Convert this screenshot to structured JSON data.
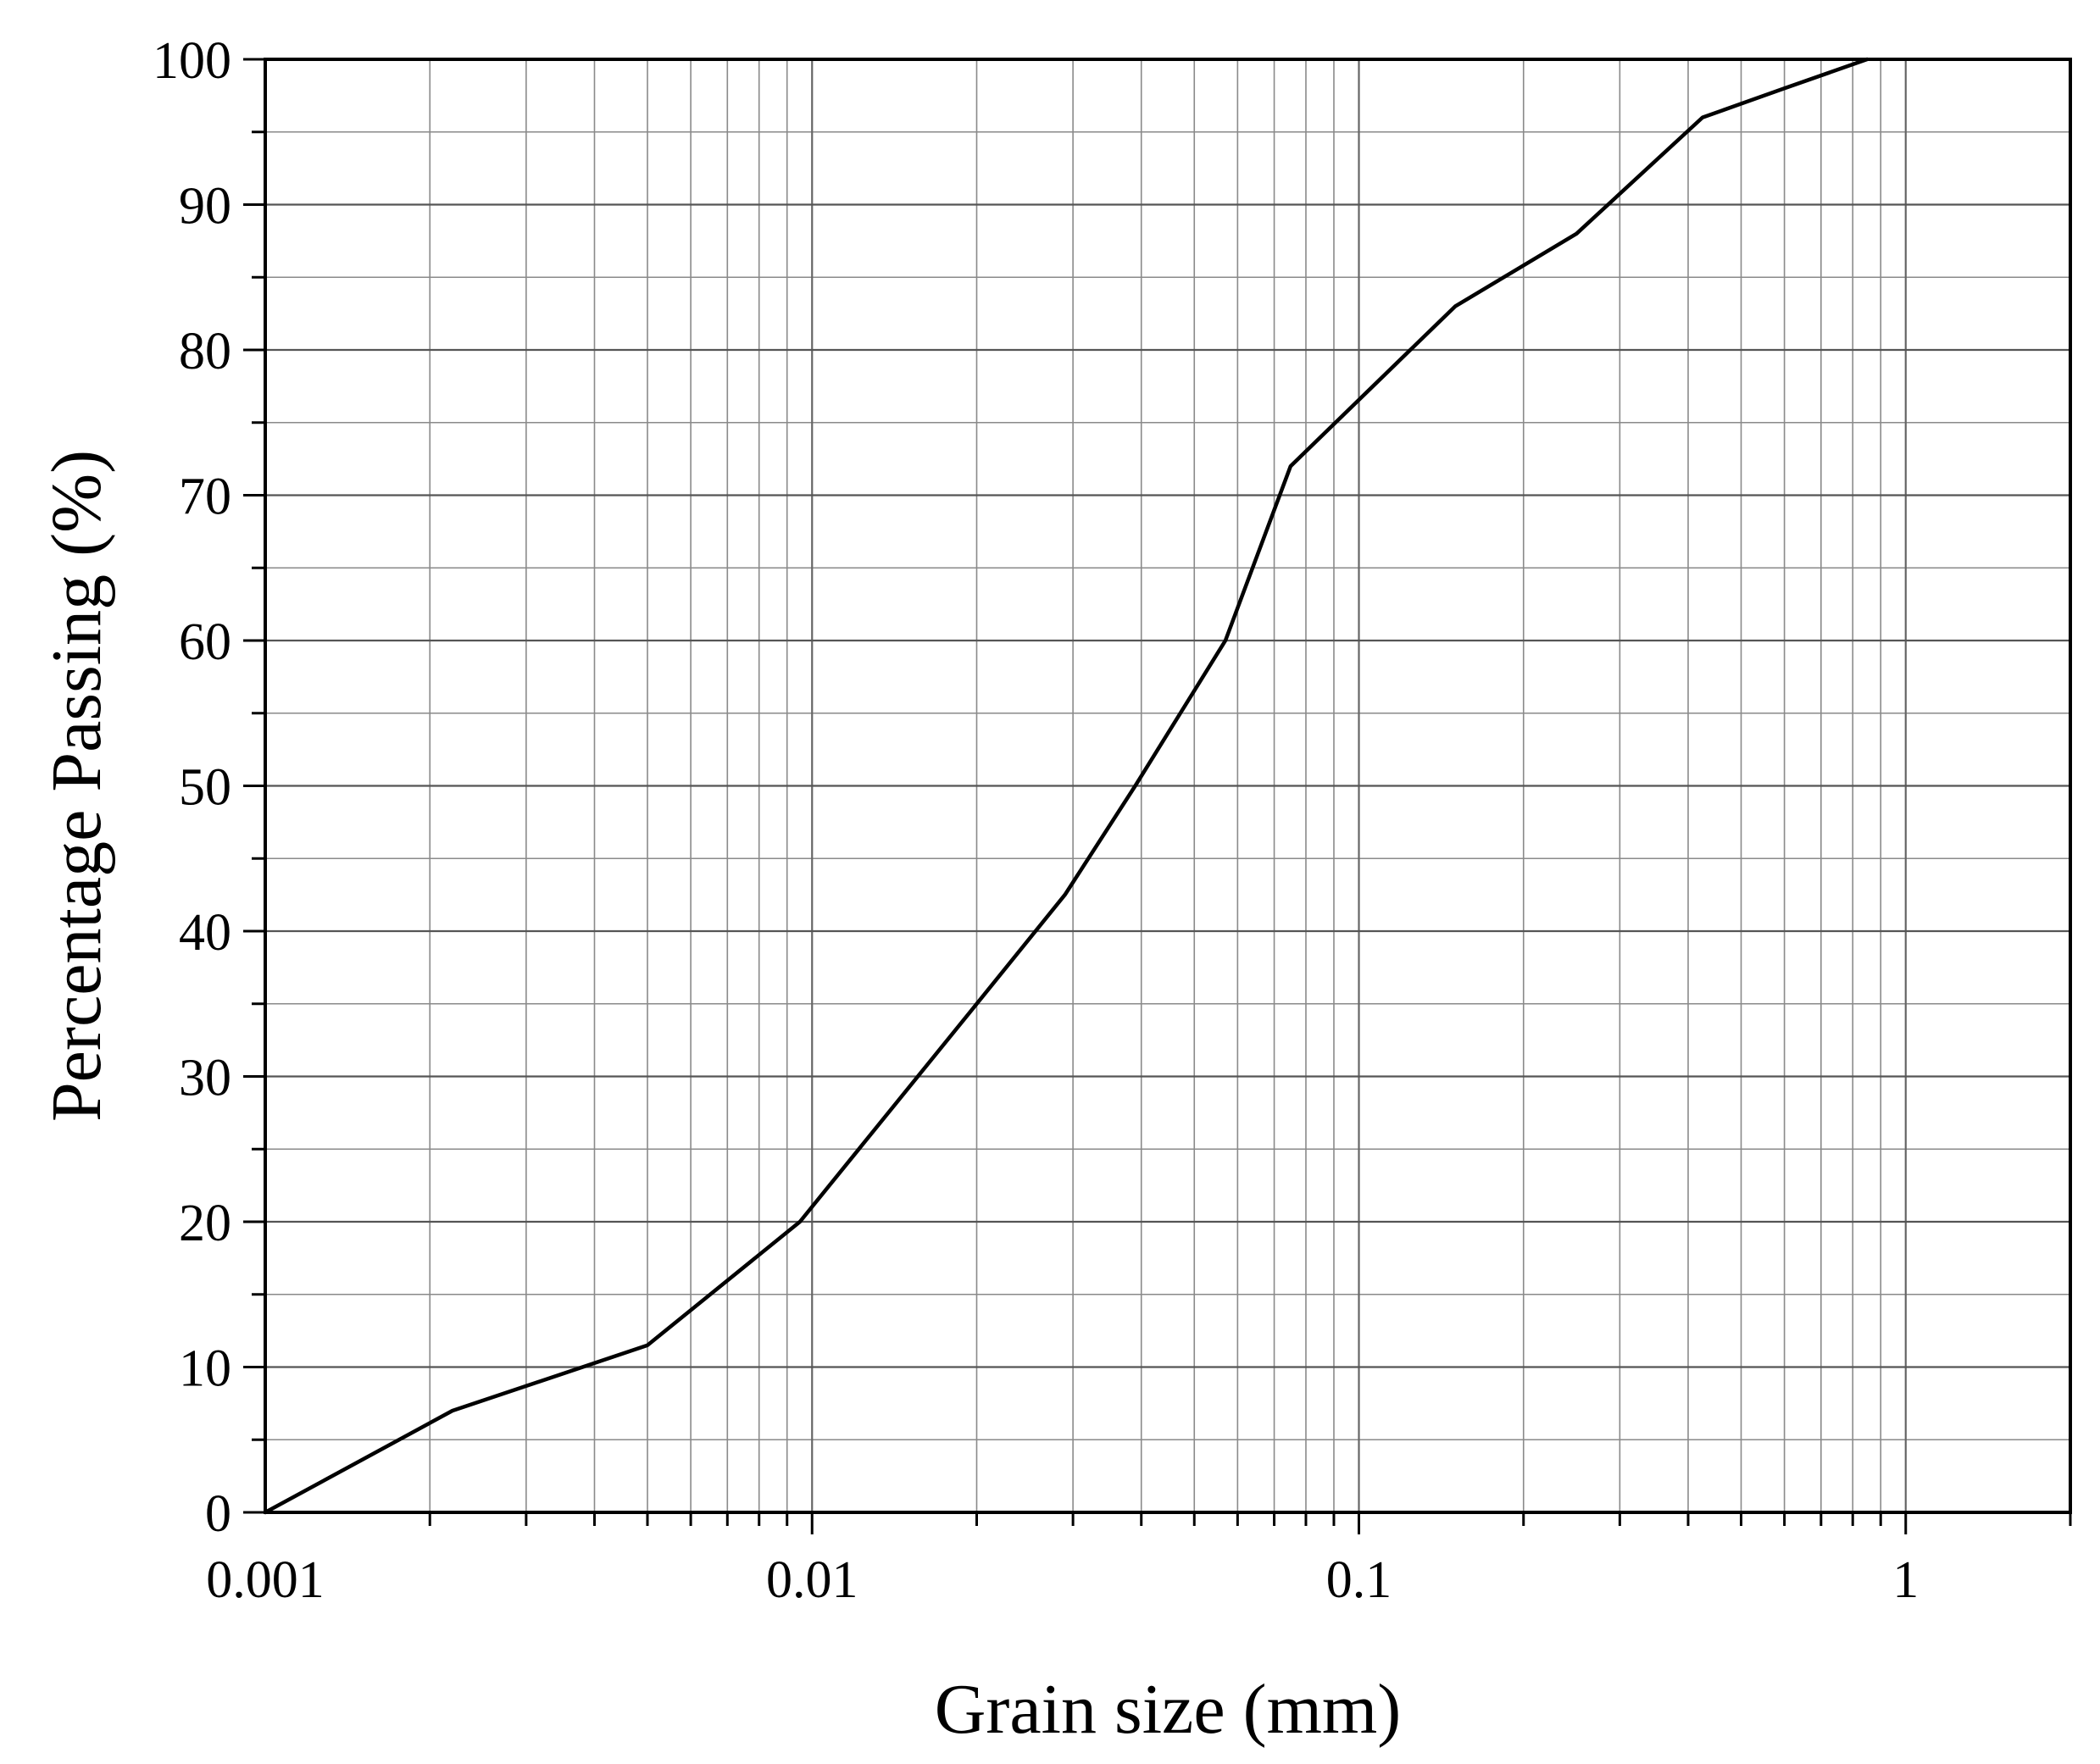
{
  "chart_data": {
    "type": "line",
    "title": "",
    "xlabel": "Grain size (mm)",
    "ylabel": "Percentage Passing (%)",
    "x_scale": "log",
    "xlim": [
      0.001,
      2
    ],
    "ylim": [
      0,
      100
    ],
    "grid": true,
    "x_tick_labels": [
      "0.001",
      "0.01",
      "0.1",
      "1"
    ],
    "x_tick_values": [
      0.001,
      0.01,
      0.1,
      1
    ],
    "y_tick_labels": [
      "0",
      "10",
      "20",
      "30",
      "40",
      "50",
      "60",
      "70",
      "80",
      "90",
      "100"
    ],
    "y_tick_values": [
      0,
      10,
      20,
      30,
      40,
      50,
      60,
      70,
      80,
      90,
      100
    ],
    "series": [
      {
        "color": "#000000",
        "x": [
          0.001,
          0.0022,
          0.005,
          0.0095,
          0.02,
          0.029,
          0.039,
          0.057,
          0.075,
          0.15,
          0.25,
          0.425,
          0.6,
          0.85
        ],
        "y": [
          0,
          7,
          11.5,
          20,
          35,
          42.5,
          50,
          60,
          72,
          83,
          88,
          96,
          98,
          100
        ]
      }
    ]
  }
}
